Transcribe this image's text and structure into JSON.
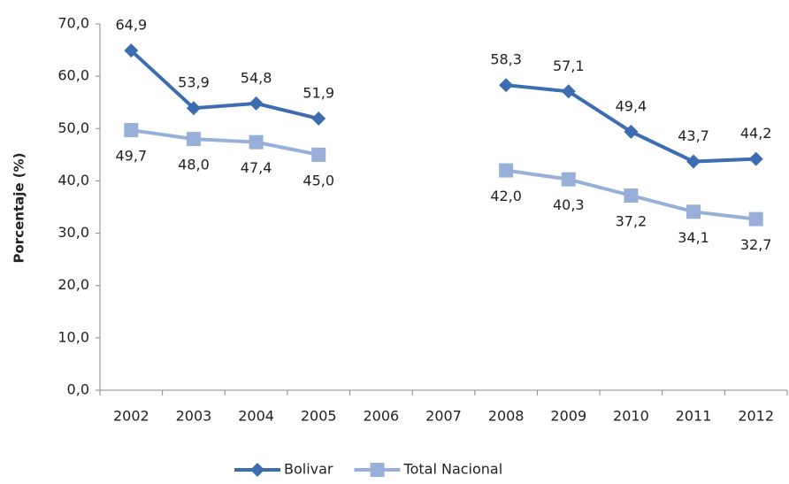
{
  "chart_data": {
    "type": "line",
    "y_axis_label": "Porcentaje (%)",
    "categories": [
      "2002",
      "2003",
      "2004",
      "2005",
      "2006",
      "2007",
      "2008",
      "2009",
      "2010",
      "2011",
      "2012"
    ],
    "series": [
      {
        "name": "Bolivar",
        "color": "#3d6db1",
        "marker": "diamond",
        "values": [
          64.9,
          53.9,
          54.8,
          51.9,
          null,
          null,
          58.3,
          57.1,
          49.4,
          43.7,
          44.2
        ],
        "value_labels": [
          "64,9",
          "53,9",
          "54,8",
          "51,9",
          null,
          null,
          "58,3",
          "57,1",
          "49,4",
          "43,7",
          "44,2"
        ]
      },
      {
        "name": "Total Nacional",
        "color": "#97afd9",
        "marker": "square",
        "values": [
          49.7,
          48.0,
          47.4,
          45.0,
          null,
          null,
          42.0,
          40.3,
          37.2,
          34.1,
          32.7
        ],
        "value_labels": [
          "49,7",
          "48,0",
          "47,4",
          "45,0",
          null,
          null,
          "42,0",
          "40,3",
          "37,2",
          "34,1",
          "32,7"
        ]
      }
    ],
    "ylim": [
      0,
      70
    ],
    "yticks": [
      {
        "value": 0,
        "label": "0,0"
      },
      {
        "value": 10,
        "label": "10,0"
      },
      {
        "value": 20,
        "label": "20,0"
      },
      {
        "value": 30,
        "label": "30,0"
      },
      {
        "value": 40,
        "label": "40,0"
      },
      {
        "value": 50,
        "label": "50,0"
      },
      {
        "value": 60,
        "label": "60,0"
      },
      {
        "value": 70,
        "label": "70,0"
      }
    ],
    "grid": false,
    "legend": "bottom"
  }
}
